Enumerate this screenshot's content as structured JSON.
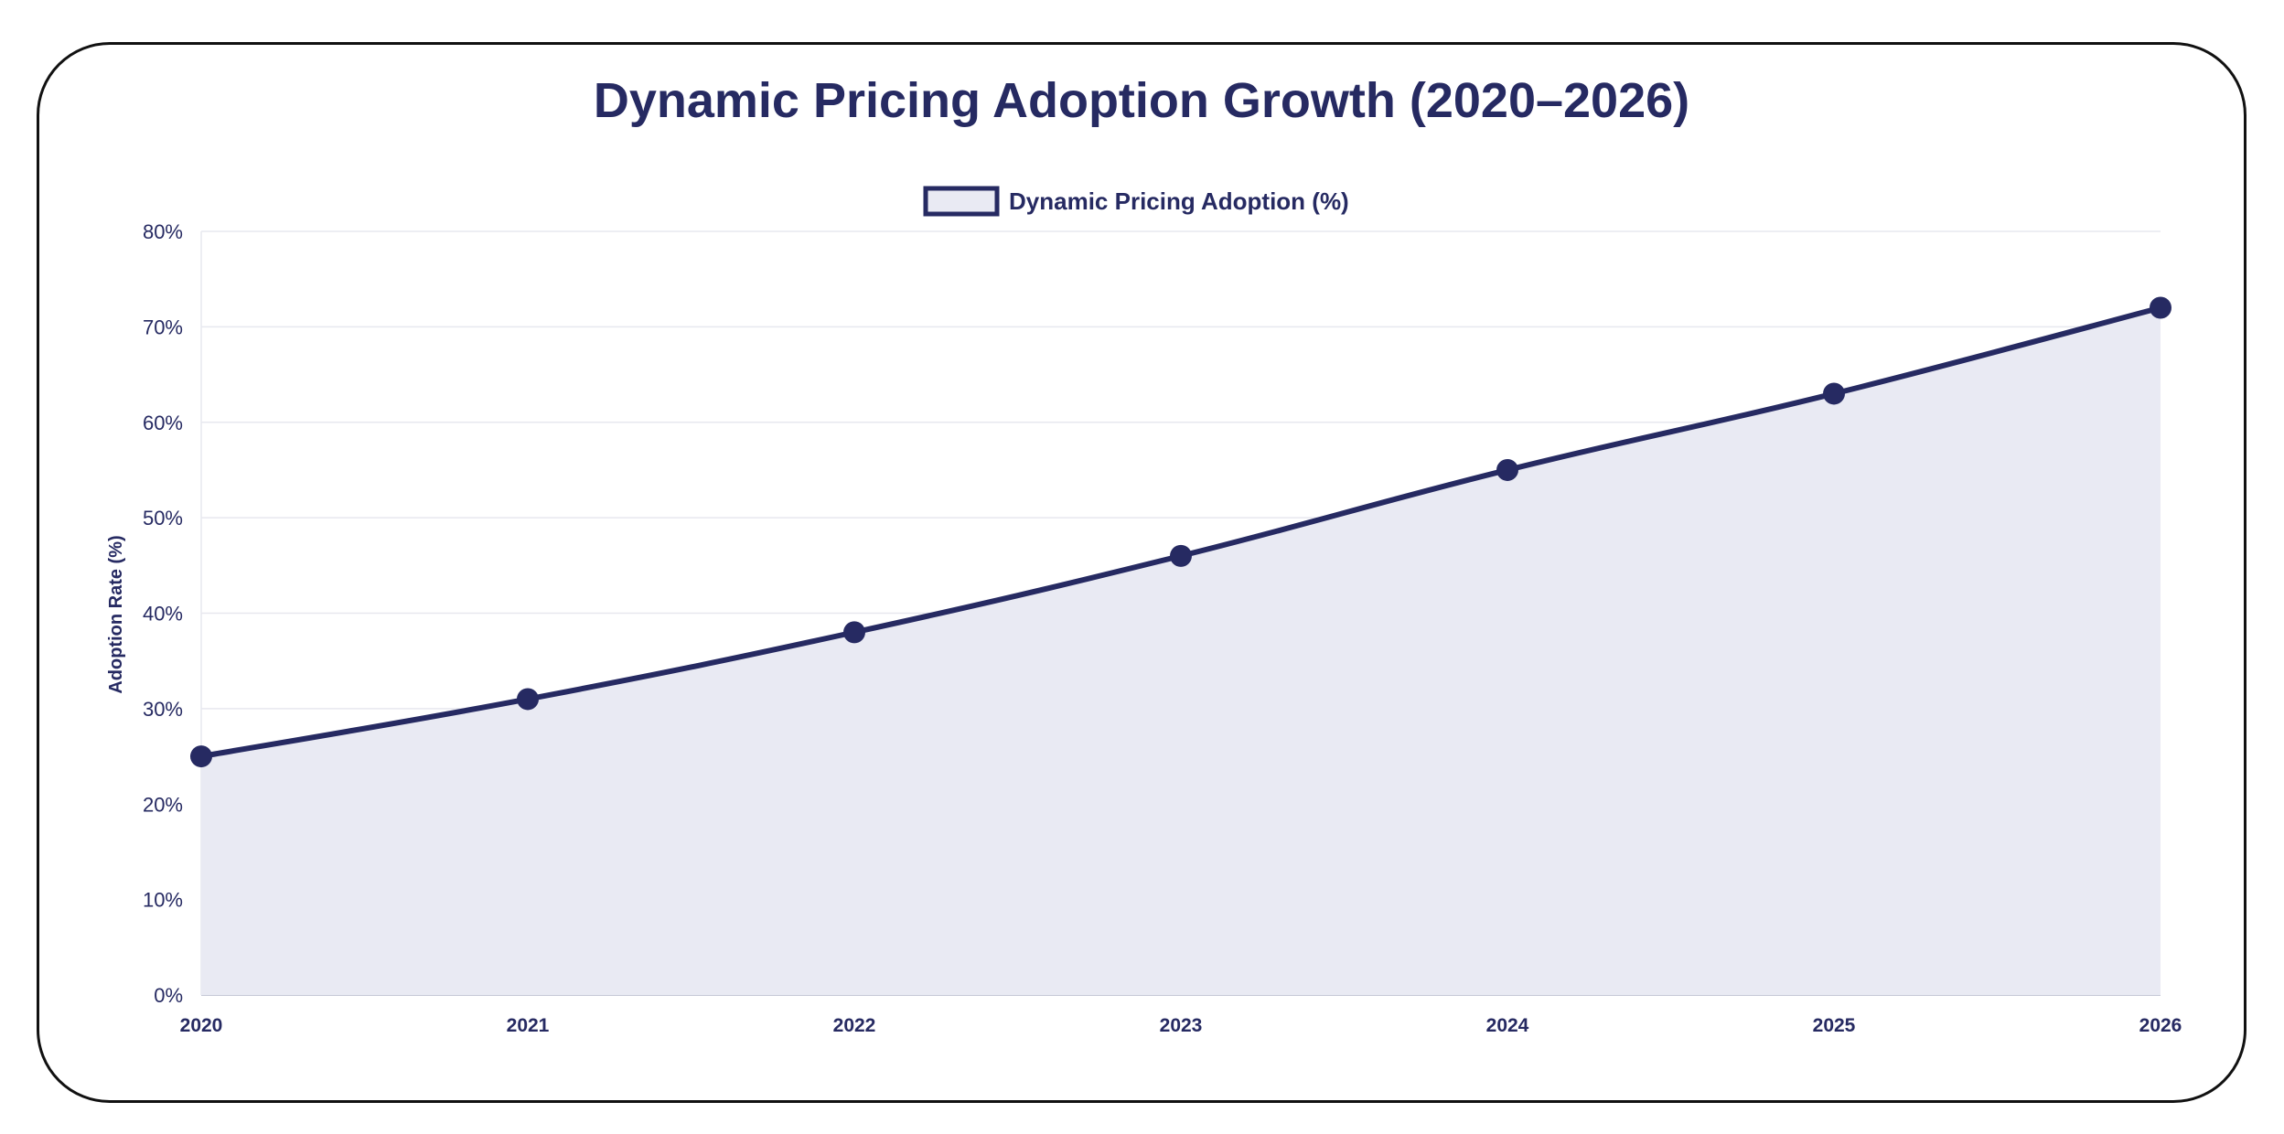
{
  "chart_data": {
    "type": "line",
    "title": "Dynamic Pricing Adoption Growth (2020–2026)",
    "xlabel": "",
    "ylabel": "Adoption Rate (%)",
    "categories": [
      "2020",
      "2021",
      "2022",
      "2023",
      "2024",
      "2025",
      "2026"
    ],
    "series": [
      {
        "name": "Dynamic Pricing Adoption (%)",
        "values": [
          25,
          31,
          38,
          46,
          55,
          63,
          72
        ],
        "color": "#262a62",
        "fill": "#e9eaf3"
      }
    ],
    "ylim": [
      0,
      80
    ],
    "yticks": [
      "0%",
      "10%",
      "20%",
      "30%",
      "40%",
      "50%",
      "60%",
      "70%",
      "80%"
    ],
    "yticks_values": [
      0,
      10,
      20,
      30,
      40,
      50,
      60,
      70,
      80
    ],
    "grid": true,
    "legend": "top-center",
    "area_fill": true
  }
}
